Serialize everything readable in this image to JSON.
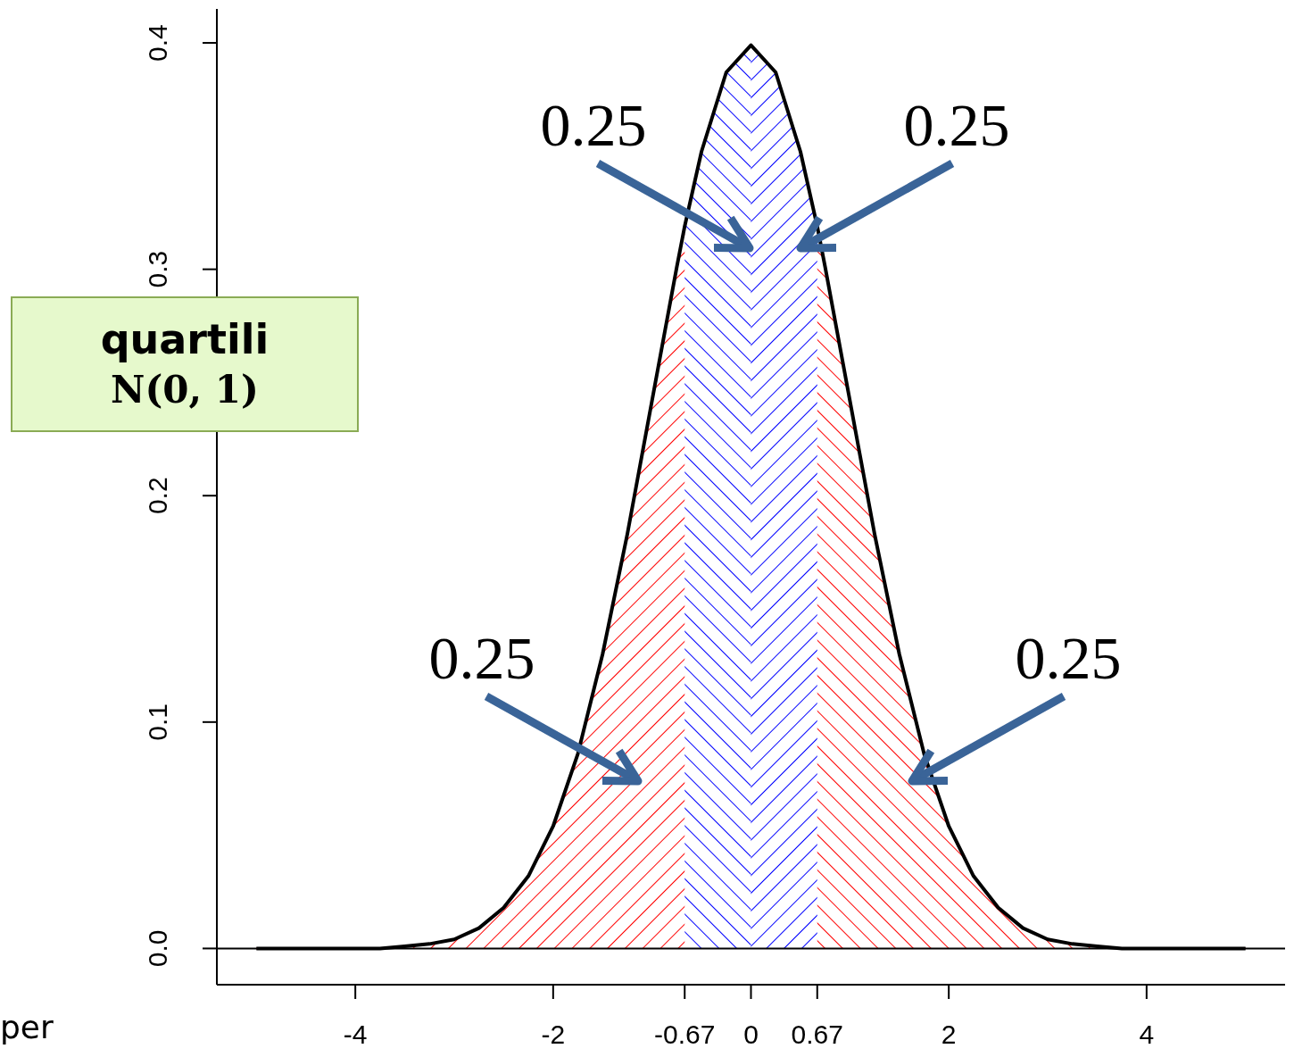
{
  "chart_data": {
    "type": "area",
    "xlim": [
      -5.4,
      5.4
    ],
    "ylim": [
      -0.016,
      0.415
    ],
    "xticks": [
      -4,
      -2,
      -0.67,
      0,
      0.67,
      2,
      4
    ],
    "yticks": [
      {
        "value": 0,
        "label": "0.0"
      },
      0.1,
      0.2,
      0.3,
      0.4
    ],
    "series": [
      {
        "color": "#ff0000",
        "x": [
          -5,
          -4.5,
          -4,
          -3.75,
          -3.5,
          -3.25,
          -3,
          -2.75,
          -2.5,
          -2.25,
          -2,
          -1.75,
          -1.5,
          -1.25,
          -1,
          -0.75,
          -0.67
        ],
        "values": [
          0,
          0,
          0,
          0,
          0.001,
          0.002,
          0.004,
          0.009,
          0.018,
          0.032,
          0.054,
          0.086,
          0.13,
          0.183,
          0.242,
          0.301,
          0.319
        ]
      },
      {
        "color": "#0000ff",
        "x": [
          -0.67,
          -0.5,
          -0.25,
          0
        ],
        "values": [
          0.319,
          0.352,
          0.387,
          0.399
        ]
      },
      {
        "color": "#0000ff",
        "x": [
          0,
          0.25,
          0.5,
          0.67
        ],
        "values": [
          0.399,
          0.387,
          0.352,
          0.319
        ]
      },
      {
        "color": "#ff0000",
        "x": [
          0.67,
          0.75,
          1,
          1.25,
          1.5,
          1.75,
          2,
          2.25,
          2.5,
          2.75,
          3,
          3.25,
          3.5,
          3.75,
          4,
          4.5,
          5
        ],
        "values": [
          0.319,
          0.301,
          0.242,
          0.183,
          0.13,
          0.086,
          0.054,
          0.032,
          0.018,
          0.009,
          0.004,
          0.002,
          0.001,
          0,
          0,
          0,
          0
        ]
      },
      {
        "type": "line",
        "color": "#000000",
        "x": [
          -5,
          -4.5,
          -4,
          -3.75,
          -3.5,
          -3.25,
          -3,
          -2.75,
          -2.5,
          -2.25,
          -2,
          -1.75,
          -1.5,
          -1.25,
          -1,
          -0.75,
          -0.67,
          -0.5,
          -0.25,
          0,
          0.25,
          0.5,
          0.67,
          0.75,
          1,
          1.25,
          1.5,
          1.75,
          2,
          2.25,
          2.5,
          2.75,
          3,
          3.25,
          3.5,
          3.75,
          4,
          4.5,
          5
        ],
        "values": [
          0,
          0,
          0,
          0,
          0.001,
          0.002,
          0.004,
          0.009,
          0.018,
          0.032,
          0.054,
          0.086,
          0.13,
          0.183,
          0.242,
          0.301,
          0.319,
          0.352,
          0.387,
          0.399,
          0.387,
          0.352,
          0.319,
          0.301,
          0.242,
          0.183,
          0.13,
          0.086,
          0.054,
          0.032,
          0.018,
          0.009,
          0.004,
          0.002,
          0.001,
          0,
          0,
          0,
          0
        ]
      }
    ],
    "ref_lines": [
      {
        "axis": "y",
        "value": 0,
        "color": "#000000"
      }
    ],
    "annotations": [
      "0.25",
      "0.25",
      "0.25",
      "0.25",
      "quartili",
      "N(0, 1)",
      "per"
    ]
  }
}
